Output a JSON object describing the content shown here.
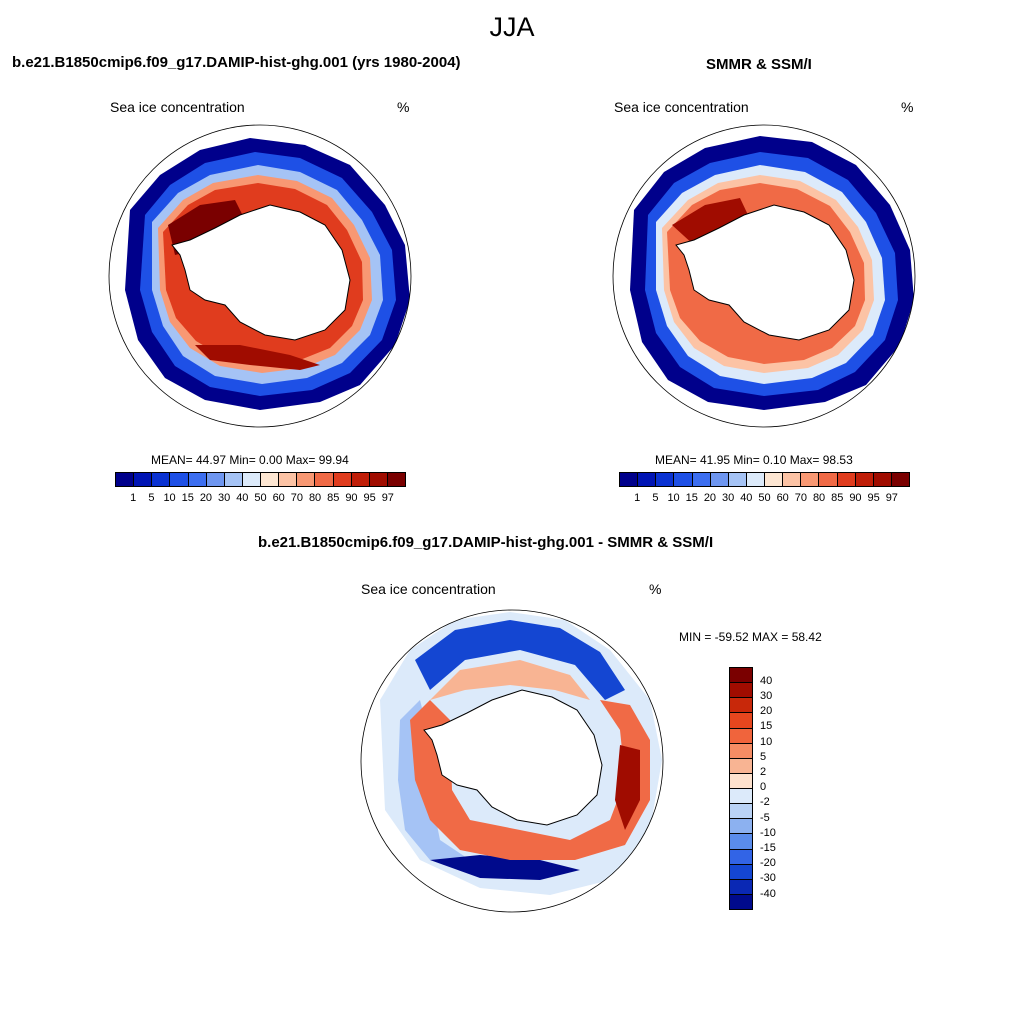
{
  "title": "JJA",
  "panels": {
    "model": {
      "title": "b.e21.B1850cmip6.f09_g17.DAMIP-hist-ghg.001 (yrs 1980-2004)",
      "left_label": "Sea ice concentration",
      "right_label": "%",
      "stats": "MEAN=  44.97  Min=   0.00  Max=  99.94"
    },
    "obs": {
      "title": "SMMR & SSM/I",
      "left_label": "Sea ice concentration",
      "right_label": "%",
      "stats": "MEAN=  41.95  Min=   0.10  Max=  98.53"
    },
    "diff": {
      "title": "b.e21.B1850cmip6.f09_g17.DAMIP-hist-ghg.001 - SMMR & SSM/I",
      "left_label": "Sea ice concentration",
      "right_label": "%",
      "stats": "MIN = -59.52 MAX =  58.42"
    }
  },
  "colorbar_concentration": {
    "levels": [
      "1",
      "5",
      "10",
      "15",
      "20",
      "30",
      "40",
      "50",
      "60",
      "70",
      "80",
      "85",
      "90",
      "95",
      "97"
    ],
    "colors": [
      "#00008b",
      "#0014b4",
      "#0a32d2",
      "#1e50e6",
      "#3c6ef0",
      "#6e96f0",
      "#a5c3f5",
      "#dceafa",
      "#fde6d2",
      "#fcc3a5",
      "#f89873",
      "#f06a46",
      "#e03c1e",
      "#c01e08",
      "#a00c00",
      "#7a0000"
    ]
  },
  "colorbar_difference": {
    "levels": [
      "40",
      "30",
      "20",
      "15",
      "10",
      "5",
      "2",
      "0",
      "-2",
      "-5",
      "-10",
      "-15",
      "-20",
      "-30",
      "-40"
    ],
    "colors": [
      "#7a0000",
      "#a00c00",
      "#c8280a",
      "#e6461e",
      "#f0643c",
      "#f58c64",
      "#f8b493",
      "#fde1cd",
      "#dceafa",
      "#b9d2f5",
      "#8cb1f0",
      "#5a8ceb",
      "#3264e6",
      "#1446d2",
      "#0a28b4",
      "#000a8c"
    ]
  },
  "chart_data": [
    {
      "type": "heatmap",
      "title": "b.e21.B1850cmip6.f09_g17.DAMIP-hist-ghg.001 (yrs 1980-2004)",
      "variable": "Sea ice concentration",
      "units": "%",
      "projection": "south polar stereographic",
      "summary": {
        "mean": 44.97,
        "min": 0.0,
        "max": 99.94
      }
    },
    {
      "type": "heatmap",
      "title": "SMMR & SSM/I",
      "variable": "Sea ice concentration",
      "units": "%",
      "projection": "south polar stereographic",
      "summary": {
        "mean": 41.95,
        "min": 0.1,
        "max": 98.53
      }
    },
    {
      "type": "heatmap",
      "title": "b.e21.B1850cmip6.f09_g17.DAMIP-hist-ghg.001 - SMMR & SSM/I",
      "variable": "Sea ice concentration",
      "units": "%",
      "projection": "south polar stereographic",
      "summary": {
        "min": -59.52,
        "max": 58.42
      }
    }
  ]
}
